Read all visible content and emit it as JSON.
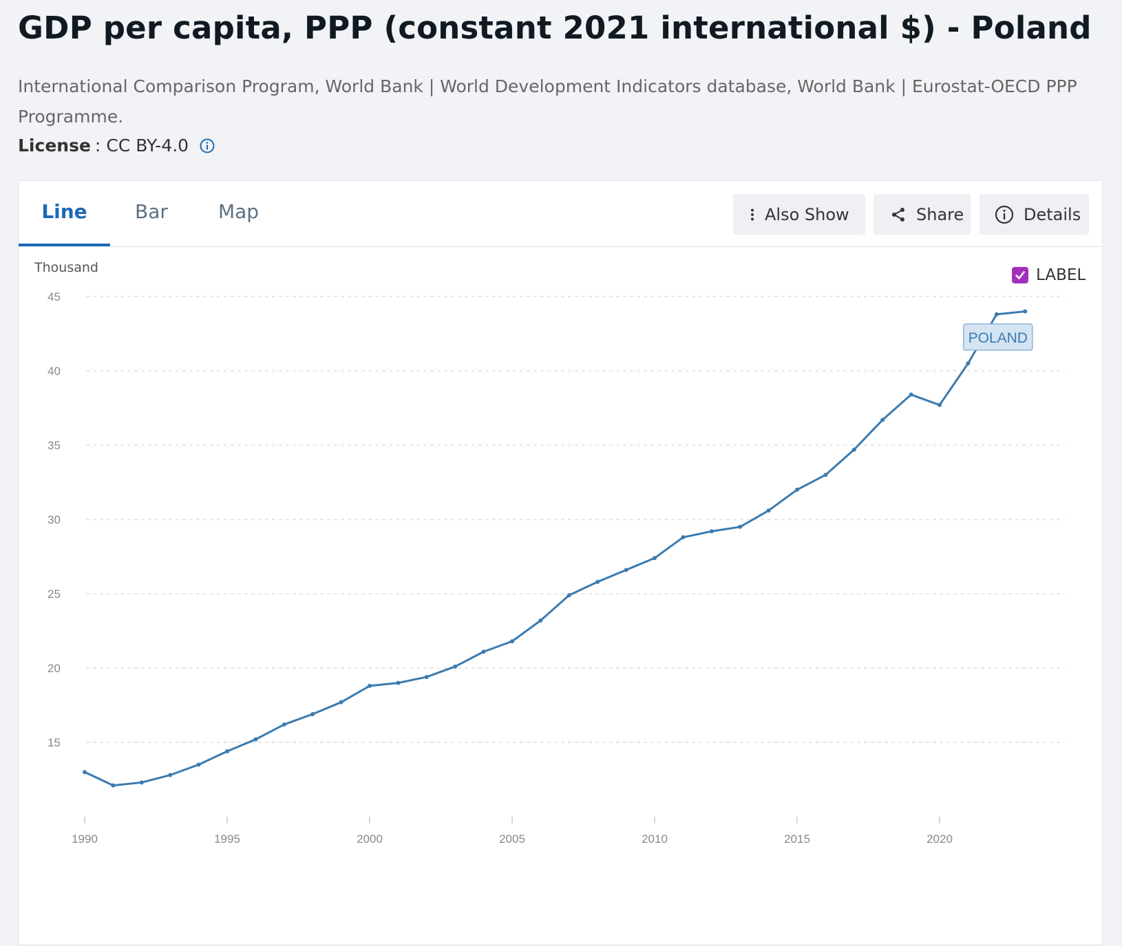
{
  "page": {
    "title": "GDP per capita, PPP (constant 2021 international $) - Poland",
    "source": "International Comparison Program, World Bank | World Development Indicators database, World Bank | Eurostat-OECD PPP Programme.",
    "license_label": "License",
    "license_value": "CC BY-4.0"
  },
  "tabs": [
    {
      "label": "Line",
      "active": true
    },
    {
      "label": "Bar",
      "active": false
    },
    {
      "label": "Map",
      "active": false
    }
  ],
  "toolbar": {
    "also_show": "Also Show",
    "share": "Share",
    "details": "Details"
  },
  "chart_controls": {
    "unit": "Thousand",
    "label_toggle": "LABEL",
    "label_checked": true,
    "checkbox_color": "#a32fbf"
  },
  "chart_data": {
    "type": "line",
    "title": "",
    "xlabel": "",
    "ylabel": "Thousand",
    "xlim": [
      1990,
      2023
    ],
    "ylim": [
      10.4,
      45
    ],
    "yticks": [
      15,
      20,
      25,
      30,
      35,
      40,
      45
    ],
    "xticks": [
      1990,
      1995,
      2000,
      2005,
      2010,
      2015,
      2020
    ],
    "grid": true,
    "series": [
      {
        "name": "POLAND",
        "color": "#3a7bb0",
        "x": [
          1990,
          1991,
          1992,
          1993,
          1994,
          1995,
          1996,
          1997,
          1998,
          1999,
          2000,
          2001,
          2002,
          2003,
          2004,
          2005,
          2006,
          2007,
          2008,
          2009,
          2010,
          2011,
          2012,
          2013,
          2014,
          2015,
          2016,
          2017,
          2018,
          2019,
          2020,
          2021,
          2022,
          2023
        ],
        "y": [
          13.0,
          12.1,
          12.3,
          12.8,
          13.5,
          14.4,
          15.2,
          16.2,
          16.9,
          17.7,
          18.8,
          19.0,
          19.4,
          20.1,
          21.1,
          21.8,
          23.2,
          24.9,
          25.8,
          26.6,
          27.4,
          28.8,
          29.2,
          29.5,
          30.6,
          32.0,
          33.0,
          34.7,
          36.7,
          38.4,
          37.7,
          40.5,
          43.8,
          44.0
        ]
      }
    ]
  }
}
